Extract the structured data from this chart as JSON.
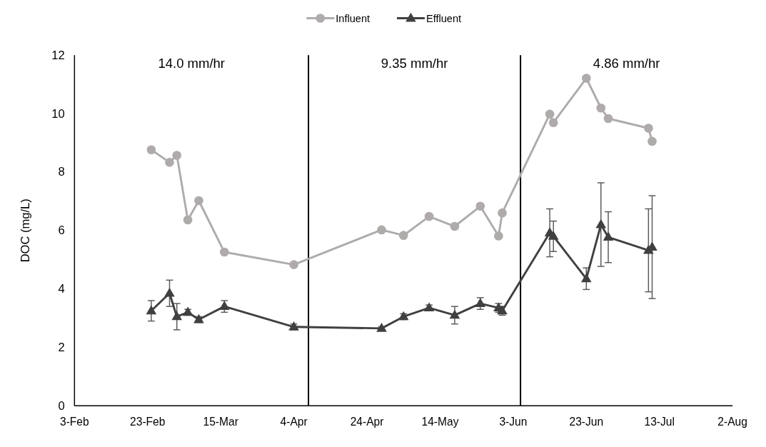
{
  "chart_data": {
    "type": "line",
    "ylabel": "DOC (mg/L)",
    "xlim": [
      "--02-03",
      "--08-02"
    ],
    "xticks": [
      {
        "value": "--02-03",
        "label": "3-Feb"
      },
      {
        "value": "--02-23",
        "label": "23-Feb"
      },
      {
        "value": "--03-15",
        "label": "15-Mar"
      },
      {
        "value": "--04-04",
        "label": "4-Apr"
      },
      {
        "value": "--04-24",
        "label": "24-Apr"
      },
      {
        "value": "--05-14",
        "label": "14-May"
      },
      {
        "value": "--06-03",
        "label": "3-Jun"
      },
      {
        "value": "--06-23",
        "label": "23-Jun"
      },
      {
        "value": "--07-13",
        "label": "13-Jul"
      },
      {
        "value": "--08-02",
        "label": "2-Aug"
      }
    ],
    "ylim": [
      0,
      12
    ],
    "yticks": [
      0,
      2,
      4,
      6,
      8,
      10,
      12
    ],
    "x": [
      "--02-24",
      "--03-01",
      "--03-03",
      "--03-06",
      "--03-09",
      "--03-16",
      "--04-04",
      "--04-28",
      "--05-04",
      "--05-11",
      "--05-18",
      "--05-25",
      "--05-30",
      "--05-31",
      "--06-13",
      "--06-14",
      "--06-23",
      "--06-27",
      "--06-29",
      "--07-10",
      "--07-11"
    ],
    "series": [
      {
        "name": "Influent",
        "color": "#afabab",
        "marker": "circle",
        "values": [
          8.76,
          8.33,
          8.57,
          6.36,
          7.02,
          5.26,
          4.83,
          6.02,
          5.83,
          6.48,
          6.14,
          6.83,
          5.81,
          6.6,
          9.98,
          9.69,
          11.21,
          10.19,
          9.83,
          9.5,
          9.05
        ]
      },
      {
        "name": "Effluent",
        "color": "#404040",
        "marker": "triangle",
        "values": [
          3.25,
          3.85,
          3.05,
          3.2,
          2.95,
          3.4,
          2.7,
          2.65,
          3.05,
          3.35,
          3.1,
          3.5,
          3.35,
          3.25,
          5.92,
          5.8,
          4.35,
          6.2,
          5.77,
          5.32,
          5.43
        ],
        "errors": [
          0.35,
          0.45,
          0.45,
          0.1,
          0.1,
          0.2,
          0.1,
          0.05,
          0.1,
          0.1,
          0.3,
          0.2,
          0.15,
          0.15,
          0.82,
          0.52,
          0.37,
          1.43,
          0.87,
          1.42,
          1.76
        ]
      }
    ],
    "ref_lines": [
      {
        "axis": "x",
        "value": "--04-08",
        "color": "#000000"
      },
      {
        "axis": "x",
        "value": "--06-05",
        "color": "#000000"
      }
    ],
    "annotations": [
      "14.0 mm/hr",
      "9.35 mm/hr",
      "4.86 mm/hr"
    ],
    "legend": "top",
    "grid": false
  }
}
